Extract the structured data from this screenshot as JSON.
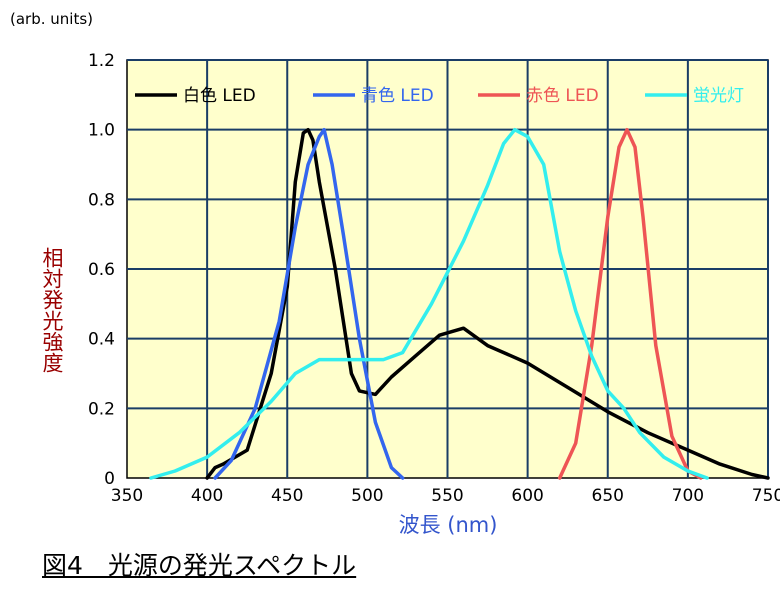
{
  "caption": "図4　光源の発光スペクトル",
  "chart_data": {
    "type": "line",
    "unit_label": "(arb. units)",
    "xlabel": "波長 (nm)",
    "ylabel": "相対発光強度",
    "xlim": [
      350,
      750
    ],
    "ylim": [
      0,
      1.2
    ],
    "x_ticks": [
      350,
      400,
      450,
      500,
      550,
      600,
      650,
      700,
      750
    ],
    "y_ticks": [
      0,
      0.2,
      0.4,
      0.6,
      0.8,
      1.0,
      1.2
    ],
    "y_tick_labels": [
      "0",
      "0.2",
      "0.4",
      "0.6",
      "0.8",
      "1.0",
      "1.2"
    ],
    "grid": true,
    "legend_position": "top",
    "plot_background": "#ffffcc",
    "series": [
      {
        "name": "白色 LED",
        "color": "#000000",
        "points": [
          [
            400,
            0
          ],
          [
            405,
            0.03
          ],
          [
            410,
            0.04
          ],
          [
            425,
            0.08
          ],
          [
            440,
            0.3
          ],
          [
            450,
            0.55
          ],
          [
            455,
            0.85
          ],
          [
            460,
            0.99
          ],
          [
            463,
            1.0
          ],
          [
            466,
            0.97
          ],
          [
            470,
            0.85
          ],
          [
            480,
            0.6
          ],
          [
            490,
            0.3
          ],
          [
            495,
            0.25
          ],
          [
            505,
            0.24
          ],
          [
            515,
            0.29
          ],
          [
            530,
            0.35
          ],
          [
            545,
            0.41
          ],
          [
            560,
            0.43
          ],
          [
            575,
            0.38
          ],
          [
            600,
            0.33
          ],
          [
            625,
            0.26
          ],
          [
            650,
            0.19
          ],
          [
            675,
            0.13
          ],
          [
            700,
            0.08
          ],
          [
            720,
            0.04
          ],
          [
            740,
            0.01
          ],
          [
            750,
            0
          ]
        ]
      },
      {
        "name": "青色 LED",
        "color": "#3366ee",
        "points": [
          [
            405,
            0
          ],
          [
            415,
            0.05
          ],
          [
            430,
            0.2
          ],
          [
            445,
            0.45
          ],
          [
            455,
            0.72
          ],
          [
            463,
            0.9
          ],
          [
            470,
            0.98
          ],
          [
            473,
            1.0
          ],
          [
            478,
            0.9
          ],
          [
            485,
            0.7
          ],
          [
            495,
            0.4
          ],
          [
            505,
            0.16
          ],
          [
            515,
            0.03
          ],
          [
            522,
            0
          ]
        ]
      },
      {
        "name": "赤色 LED",
        "color": "#ee5555",
        "points": [
          [
            620,
            0
          ],
          [
            630,
            0.1
          ],
          [
            640,
            0.38
          ],
          [
            650,
            0.75
          ],
          [
            657,
            0.95
          ],
          [
            662,
            1.0
          ],
          [
            667,
            0.95
          ],
          [
            672,
            0.75
          ],
          [
            680,
            0.38
          ],
          [
            690,
            0.12
          ],
          [
            700,
            0.02
          ],
          [
            708,
            0
          ]
        ]
      },
      {
        "name": "蛍光灯",
        "color": "#33eeee",
        "points": [
          [
            365,
            0
          ],
          [
            380,
            0.02
          ],
          [
            400,
            0.06
          ],
          [
            420,
            0.13
          ],
          [
            440,
            0.22
          ],
          [
            455,
            0.3
          ],
          [
            470,
            0.34
          ],
          [
            490,
            0.34
          ],
          [
            510,
            0.34
          ],
          [
            522,
            0.36
          ],
          [
            540,
            0.5
          ],
          [
            560,
            0.68
          ],
          [
            575,
            0.84
          ],
          [
            585,
            0.96
          ],
          [
            592,
            1.0
          ],
          [
            600,
            0.98
          ],
          [
            610,
            0.9
          ],
          [
            620,
            0.65
          ],
          [
            630,
            0.48
          ],
          [
            640,
            0.35
          ],
          [
            650,
            0.25
          ],
          [
            660,
            0.2
          ],
          [
            670,
            0.13
          ],
          [
            685,
            0.06
          ],
          [
            700,
            0.02
          ],
          [
            712,
            0
          ]
        ]
      }
    ]
  }
}
